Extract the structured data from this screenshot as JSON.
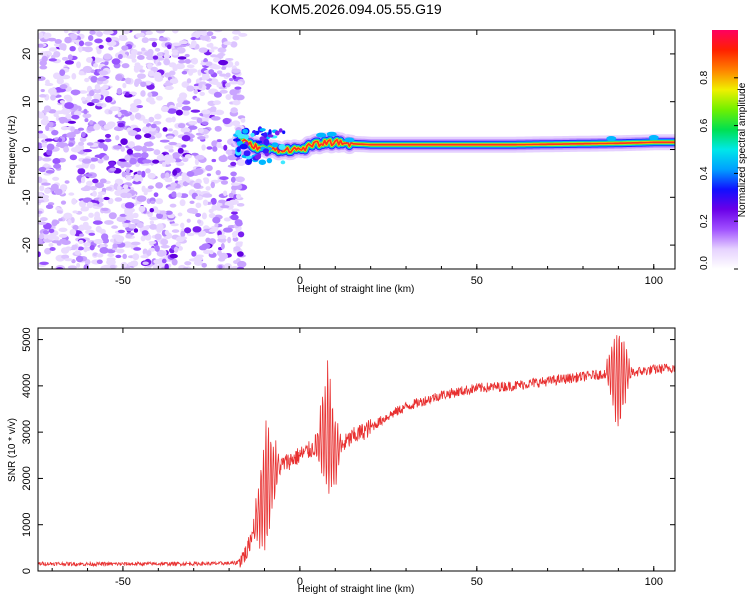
{
  "title": "KOM5.2026.094.05.55.G19",
  "chart_data": [
    {
      "type": "heatmap",
      "name": "spectrogram",
      "xlabel": "Height of straight line (km)",
      "ylabel": "Frequency (Hz)",
      "xlim": [
        -74,
        106
      ],
      "ylim": [
        -25,
        25
      ],
      "xticks": [
        -50,
        0,
        50,
        100
      ],
      "yticks": [
        -20,
        -10,
        0,
        10,
        20
      ],
      "colorbar": {
        "label": "Normalized spectral amplitude",
        "range": [
          0,
          1
        ],
        "ticks": [
          "0.0",
          "0.2",
          "0.4",
          "0.6",
          "0.8"
        ],
        "colors": [
          "#ffffff",
          "#e6d2ff",
          "#a050ff",
          "#6a00e8",
          "#1010ff",
          "#00a0ff",
          "#00e8e8",
          "#00e050",
          "#70f000",
          "#f0f000",
          "#ff8000",
          "#ff2000",
          "#ff0060"
        ]
      },
      "noise_region_km": [
        -74,
        -17
      ],
      "signal_path": [
        {
          "x": -17,
          "f": 2.0
        },
        {
          "x": -14,
          "f": 1.0
        },
        {
          "x": -10,
          "f": 0.0
        },
        {
          "x": -5,
          "f": 0.0
        },
        {
          "x": 0,
          "f": 0.0
        },
        {
          "x": 5,
          "f": 1.2
        },
        {
          "x": 10,
          "f": 1.5
        },
        {
          "x": 15,
          "f": 1.2
        },
        {
          "x": 20,
          "f": 1.0
        },
        {
          "x": 40,
          "f": 1.0
        },
        {
          "x": 60,
          "f": 1.0
        },
        {
          "x": 80,
          "f": 1.2
        },
        {
          "x": 90,
          "f": 1.3
        },
        {
          "x": 100,
          "f": 1.5
        },
        {
          "x": 106,
          "f": 1.5
        }
      ]
    },
    {
      "type": "line",
      "name": "snr",
      "xlabel": "Height of straight line (km)",
      "ylabel": "SNR (10 * v/v)",
      "xlim": [
        -74,
        106
      ],
      "ylim": [
        0,
        5250
      ],
      "xticks": [
        -50,
        0,
        50,
        100
      ],
      "yticks": [
        0,
        1000,
        2000,
        3000,
        4000,
        5000
      ],
      "color": "#e83030",
      "series": [
        {
          "name": "SNR",
          "x": [
            -74,
            -60,
            -40,
            -25,
            -18,
            -15,
            -12,
            -10,
            -8,
            -5,
            0,
            5,
            8,
            10,
            15,
            20,
            25,
            30,
            40,
            50,
            60,
            70,
            80,
            85,
            88,
            90,
            92,
            95,
            100,
            106
          ],
          "y": [
            160,
            150,
            155,
            160,
            170,
            400,
            1200,
            1700,
            2100,
            2300,
            2500,
            2700,
            3000,
            2600,
            2900,
            3100,
            3350,
            3550,
            3800,
            3950,
            4000,
            4100,
            4200,
            4250,
            4300,
            4150,
            4250,
            4300,
            4350,
            4400
          ]
        }
      ],
      "bursts": [
        {
          "x": -9.5,
          "amp": 900
        },
        {
          "x": 8,
          "amp": 900
        },
        {
          "x": 90,
          "amp": 700
        }
      ]
    }
  ]
}
